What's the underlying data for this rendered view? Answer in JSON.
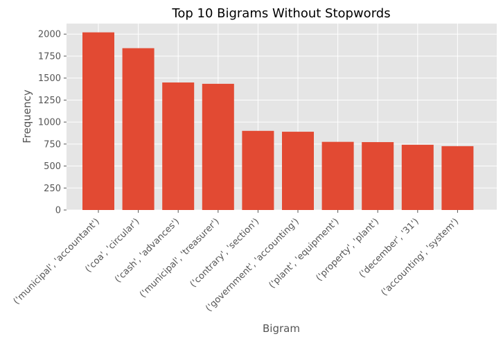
{
  "chart_data": {
    "type": "bar",
    "title": "Top 10 Bigrams Without Stopwords",
    "xlabel": "Bigram",
    "ylabel": "Frequency",
    "categories": [
      "('municipal', 'accountant')",
      "('coa', 'circular')",
      "('cash', 'advances')",
      "('municipal', 'treasurer')",
      "('contrary', 'section')",
      "('government', 'accounting')",
      "('plant', 'equipment')",
      "('property', 'plant')",
      "('december', '31')",
      "('accounting', 'system')"
    ],
    "values": [
      2020,
      1840,
      1450,
      1435,
      900,
      890,
      775,
      772,
      742,
      726
    ],
    "ylim": [
      0,
      2120
    ],
    "yticks": [
      0,
      250,
      500,
      750,
      1000,
      1250,
      1500,
      1750,
      2000
    ],
    "grid": true,
    "legend": "none",
    "colors": {
      "bar": "#E24A33",
      "plot_background": "#E5E5E5",
      "grid": "#FFFFFF",
      "text": "#555555"
    }
  }
}
